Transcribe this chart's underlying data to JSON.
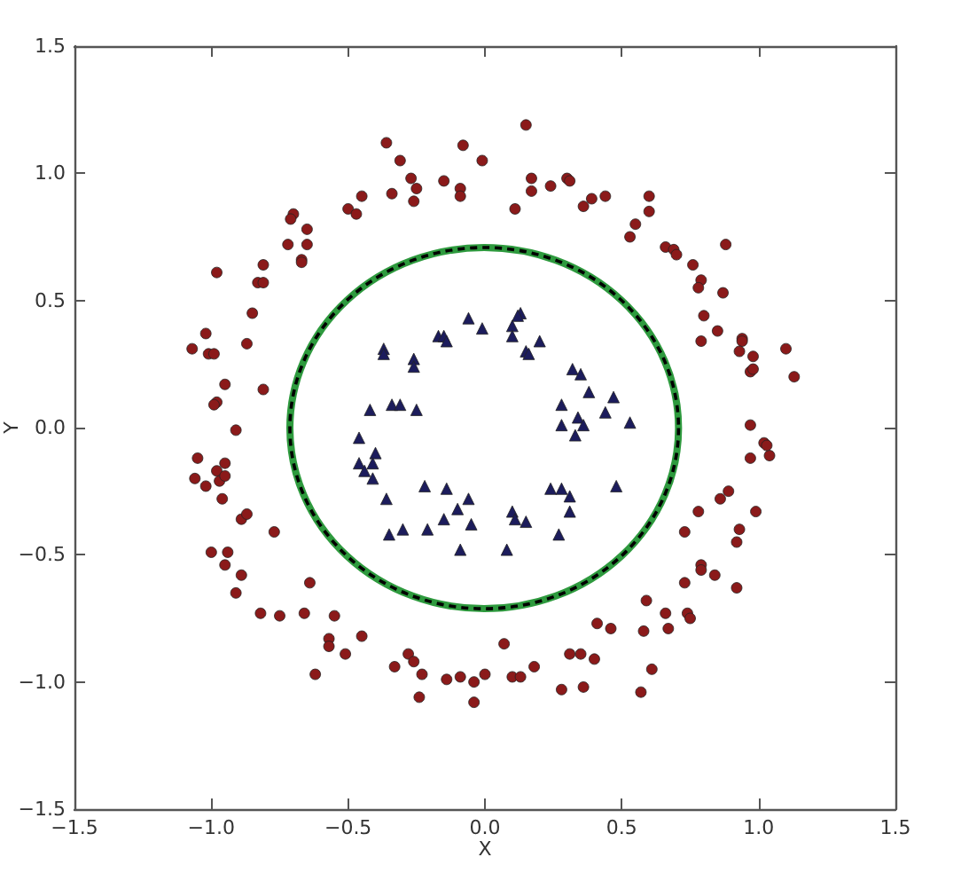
{
  "chart_data": {
    "type": "scatter",
    "xlabel": "X",
    "ylabel": "Y",
    "xlim": [
      -1.5,
      1.5
    ],
    "ylim": [
      -1.5,
      1.5
    ],
    "xticks": [
      {
        "value": -1.5,
        "label": "−1.5"
      },
      {
        "value": -1,
        "label": "−1.0"
      },
      {
        "value": -0.5,
        "label": "−0.5"
      },
      {
        "value": 0,
        "label": "0.0"
      },
      0.5,
      {
        "value": 1,
        "label": "1.0"
      },
      1.5
    ],
    "yticks": [
      {
        "value": -1.5,
        "label": "−1.5"
      },
      {
        "value": -1,
        "label": "−1.0"
      },
      {
        "value": -0.5,
        "label": "−0.5"
      },
      {
        "value": 0,
        "label": "0.0"
      },
      0.5,
      {
        "value": 1,
        "label": "1.0"
      },
      1.5
    ],
    "series": [
      {
        "type": "scatter",
        "marker": "circle",
        "color": "#8b1a1a",
        "x": [
          -0.36,
          -0.31,
          -0.08,
          -0.01,
          -0.27,
          -0.15,
          -0.34,
          -0.25,
          -0.26,
          -0.09,
          -0.09,
          -0.45,
          -0.5,
          -0.47,
          -0.7,
          -0.71,
          -0.65,
          -0.72,
          -0.65,
          -0.67,
          -0.67,
          -0.81,
          -0.83,
          -0.81,
          -0.98,
          -0.85,
          -1.02,
          -0.87,
          -1.07,
          -1.01,
          -0.99,
          -0.81,
          -0.95,
          -0.98,
          -0.99,
          -0.91,
          -1.05,
          -0.95,
          -0.98,
          -1.06,
          -1.02,
          -0.97,
          -0.95,
          -0.96,
          -0.89,
          -0.87,
          -0.77,
          -1.0,
          -0.94,
          -0.95,
          -0.89,
          -0.91,
          -0.82,
          -0.75,
          -0.64,
          -0.66,
          -0.55,
          -0.57,
          -0.57,
          -0.51,
          -0.62,
          -0.45,
          -0.33,
          -0.28,
          -0.26,
          -0.23,
          -0.24,
          -0.14,
          -0.09,
          -0.04,
          -0.04,
          0.0,
          0.07,
          0.1,
          0.13,
          0.18,
          0.28,
          0.31,
          0.35,
          0.4,
          0.36,
          0.41,
          0.46,
          0.57,
          0.61,
          0.58,
          0.59,
          0.66,
          0.67,
          0.73,
          0.74,
          0.75,
          0.73,
          0.78,
          0.79,
          0.79,
          0.84,
          0.86,
          0.89,
          0.92,
          0.93,
          0.92,
          0.99,
          0.97,
          1.04,
          1.02,
          0.15,
          0.17,
          0.17,
          0.24,
          0.3,
          0.31,
          0.11,
          0.36,
          0.39,
          0.44,
          0.6,
          0.6,
          0.55,
          0.53,
          0.66,
          0.69,
          0.7,
          0.76,
          0.79,
          0.78,
          0.88,
          0.87,
          0.8,
          0.85,
          0.79,
          0.94,
          0.94,
          0.93,
          0.98,
          0.97,
          0.98,
          1.1,
          1.13,
          0.97,
          1.03
        ],
        "values": [
          1.12,
          1.05,
          1.11,
          1.05,
          0.98,
          0.97,
          0.92,
          0.94,
          0.89,
          0.94,
          0.91,
          0.91,
          0.86,
          0.84,
          0.84,
          0.82,
          0.78,
          0.72,
          0.72,
          0.66,
          0.65,
          0.64,
          0.57,
          0.57,
          0.61,
          0.45,
          0.37,
          0.33,
          0.31,
          0.29,
          0.29,
          0.15,
          0.17,
          0.1,
          0.09,
          -0.01,
          -0.12,
          -0.14,
          -0.17,
          -0.2,
          -0.23,
          -0.21,
          -0.19,
          -0.28,
          -0.36,
          -0.34,
          -0.41,
          -0.49,
          -0.49,
          -0.54,
          -0.58,
          -0.65,
          -0.73,
          -0.74,
          -0.61,
          -0.73,
          -0.74,
          -0.83,
          -0.86,
          -0.89,
          -0.97,
          -0.82,
          -0.94,
          -0.89,
          -0.92,
          -0.97,
          -1.06,
          -0.99,
          -0.98,
          -1.0,
          -1.08,
          -0.97,
          -0.85,
          -0.98,
          -0.98,
          -0.94,
          -1.03,
          -0.89,
          -0.89,
          -0.91,
          -1.02,
          -0.77,
          -0.79,
          -1.04,
          -0.95,
          -0.8,
          -0.68,
          -0.73,
          -0.79,
          -0.61,
          -0.73,
          -0.75,
          -0.41,
          -0.33,
          -0.54,
          -0.56,
          -0.58,
          -0.28,
          -0.25,
          -0.63,
          -0.4,
          -0.45,
          -0.33,
          -0.12,
          -0.11,
          -0.06,
          1.19,
          0.98,
          0.93,
          0.95,
          0.98,
          0.97,
          0.86,
          0.87,
          0.9,
          0.91,
          0.91,
          0.85,
          0.8,
          0.75,
          0.71,
          0.7,
          0.68,
          0.64,
          0.58,
          0.55,
          0.72,
          0.53,
          0.44,
          0.38,
          0.34,
          0.35,
          0.34,
          0.3,
          0.28,
          0.22,
          0.23,
          0.31,
          0.2,
          0.01,
          -0.07
        ]
      },
      {
        "type": "scatter",
        "marker": "triangle",
        "color": "#1c1c5c",
        "x": [
          -0.06,
          -0.01,
          -0.17,
          -0.15,
          -0.14,
          -0.37,
          -0.37,
          -0.26,
          -0.26,
          -0.34,
          -0.31,
          -0.42,
          -0.25,
          -0.46,
          -0.4,
          -0.46,
          -0.41,
          -0.44,
          0.13,
          0.12,
          0.1,
          0.1,
          0.2,
          0.15,
          0.16,
          0.32,
          0.35,
          0.38,
          0.47,
          0.44,
          0.28,
          0.28,
          0.34,
          0.36,
          0.33,
          0.53,
          -0.41,
          -0.36,
          -0.22,
          -0.14,
          -0.06,
          -0.1,
          -0.15,
          -0.05,
          -0.35,
          -0.3,
          -0.21,
          -0.09,
          0.24,
          0.28,
          0.31,
          0.48,
          0.31,
          0.1,
          0.11,
          0.15,
          0.27,
          0.08
        ],
        "values": [
          0.43,
          0.39,
          0.36,
          0.36,
          0.34,
          0.31,
          0.29,
          0.27,
          0.24,
          0.09,
          0.09,
          0.07,
          0.07,
          -0.04,
          -0.1,
          -0.14,
          -0.14,
          -0.17,
          0.45,
          0.44,
          0.4,
          0.36,
          0.34,
          0.3,
          0.29,
          0.23,
          0.21,
          0.14,
          0.12,
          0.06,
          0.09,
          0.01,
          0.04,
          0.01,
          -0.03,
          0.02,
          -0.2,
          -0.28,
          -0.23,
          -0.24,
          -0.28,
          -0.32,
          -0.36,
          -0.38,
          -0.42,
          -0.4,
          -0.4,
          -0.48,
          -0.24,
          -0.24,
          -0.27,
          -0.23,
          -0.33,
          -0.33,
          -0.36,
          -0.37,
          -0.42,
          -0.48
        ]
      }
    ]
  }
}
